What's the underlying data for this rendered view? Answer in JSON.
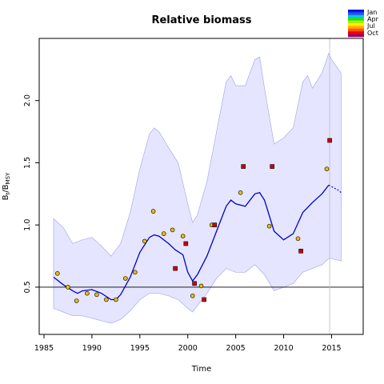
{
  "chart_data": {
    "type": "line",
    "title": "Relative biomass",
    "xlabel": "Time",
    "ylabel": "B",
    "ylabel_sub": "t",
    "ylabel_mid": "/B",
    "ylabel_sub2": "MSY",
    "xlim": [
      1984.5,
      2018.3
    ],
    "ylim": [
      0.12,
      2.5
    ],
    "x_ticks": [
      1985,
      1990,
      1995,
      2000,
      2005,
      2010,
      2015
    ],
    "y_ticks": [
      0.5,
      1.0,
      1.5,
      2.0
    ],
    "y_tick_labels": [
      "0.5",
      "1.0",
      "1.5",
      "2.0"
    ],
    "reference_line_y": 0.5,
    "reference_line_x": 2014.8,
    "colors": {
      "band_fill": "#e5e5ff",
      "band_edge": "#aaaaee",
      "line": "#0000cc",
      "ref_hline": "#000000",
      "ref_vline": "#bbbbbb",
      "point_yellow": "#e8c000",
      "point_red": "#cc0000"
    },
    "legend": {
      "placement": "top-right",
      "entries": [
        {
          "label": "Jan",
          "color": "#0000ee"
        },
        {
          "label": "Apr",
          "color": "#00dd00"
        },
        {
          "label": "Jul",
          "color": "#ff7700"
        },
        {
          "label": "Oct",
          "color": "#990066"
        }
      ],
      "gradient": [
        "#1111dd",
        "#2255ee",
        "#00ccdd",
        "#22dd22",
        "#aaee00",
        "#ffee00",
        "#ffaa00",
        "#ff5500",
        "#ee0000",
        "#990066"
      ]
    },
    "series": [
      {
        "kind": "median",
        "x": [
          1986,
          1987,
          1988,
          1988.5,
          1989,
          1990,
          1991,
          1992,
          1992.5,
          1993,
          1994,
          1995,
          1996,
          1996.5,
          1997,
          1998,
          1998.7,
          1999.5,
          2000,
          2000.5,
          2001,
          2002,
          2003,
          2004,
          2004.5,
          2005,
          2006,
          2007,
          2007.5,
          2008,
          2009,
          2010,
          2011,
          2012,
          2013,
          2014,
          2014.7
        ],
        "y": [
          0.58,
          0.52,
          0.47,
          0.45,
          0.47,
          0.48,
          0.45,
          0.4,
          0.4,
          0.44,
          0.58,
          0.78,
          0.9,
          0.92,
          0.91,
          0.85,
          0.8,
          0.76,
          0.62,
          0.55,
          0.6,
          0.75,
          0.95,
          1.15,
          1.2,
          1.17,
          1.15,
          1.25,
          1.26,
          1.2,
          0.95,
          0.88,
          0.93,
          1.1,
          1.18,
          1.25,
          1.32
        ]
      },
      {
        "kind": "median-projection",
        "x": [
          2014.7,
          2015.2,
          2015.7,
          2016
        ],
        "y": [
          1.32,
          1.3,
          1.28,
          1.26
        ]
      },
      {
        "kind": "upper",
        "x": [
          1986,
          1987,
          1988,
          1989,
          1990,
          1991,
          1992,
          1993,
          1994,
          1995,
          1996,
          1996.5,
          1997,
          1998,
          1999,
          2000,
          2000.5,
          2001,
          2002,
          2003,
          2004,
          2004.5,
          2005,
          2006,
          2007,
          2007.5,
          2008,
          2009,
          2010,
          2011,
          2012,
          2012.5,
          2013,
          2014,
          2014.7,
          2015,
          2016
        ],
        "y": [
          1.05,
          0.98,
          0.85,
          0.88,
          0.9,
          0.83,
          0.75,
          0.85,
          1.1,
          1.45,
          1.73,
          1.78,
          1.75,
          1.62,
          1.5,
          1.17,
          1.02,
          1.08,
          1.35,
          1.75,
          2.15,
          2.2,
          2.12,
          2.12,
          2.33,
          2.35,
          2.1,
          1.65,
          1.7,
          1.78,
          2.15,
          2.2,
          2.1,
          2.22,
          2.38,
          2.33,
          2.22
        ]
      },
      {
        "kind": "lower",
        "x": [
          1986,
          1987,
          1988,
          1989,
          1990,
          1991,
          1992,
          1993,
          1994,
          1995,
          1996,
          1997,
          1998,
          1999,
          2000,
          2000.5,
          2001,
          2002,
          2003,
          2004,
          2005,
          2006,
          2007,
          2008,
          2009,
          2010,
          2011,
          2012,
          2013,
          2014,
          2014.7,
          2015,
          2016
        ],
        "y": [
          0.33,
          0.3,
          0.27,
          0.27,
          0.25,
          0.23,
          0.21,
          0.24,
          0.31,
          0.4,
          0.45,
          0.45,
          0.43,
          0.4,
          0.33,
          0.3,
          0.35,
          0.45,
          0.57,
          0.65,
          0.62,
          0.62,
          0.68,
          0.6,
          0.47,
          0.5,
          0.53,
          0.62,
          0.65,
          0.68,
          0.73,
          0.73,
          0.71
        ]
      }
    ],
    "points": [
      {
        "x": 1986.4,
        "y": 0.61,
        "month": "Jul"
      },
      {
        "x": 1987.5,
        "y": 0.5,
        "month": "Jul"
      },
      {
        "x": 1988.4,
        "y": 0.39,
        "month": "Jul"
      },
      {
        "x": 1989.5,
        "y": 0.45,
        "month": "Jul"
      },
      {
        "x": 1990.5,
        "y": 0.44,
        "month": "Jul"
      },
      {
        "x": 1991.5,
        "y": 0.4,
        "month": "Jul"
      },
      {
        "x": 1992.5,
        "y": 0.4,
        "month": "Jul"
      },
      {
        "x": 1993.5,
        "y": 0.57,
        "month": "Jul"
      },
      {
        "x": 1994.5,
        "y": 0.62,
        "month": "Jul"
      },
      {
        "x": 1995.5,
        "y": 0.87,
        "month": "Jul"
      },
      {
        "x": 1996.4,
        "y": 1.11,
        "month": "Jul"
      },
      {
        "x": 1997.5,
        "y": 0.93,
        "month": "Jul"
      },
      {
        "x": 1998.4,
        "y": 0.96,
        "month": "Jul"
      },
      {
        "x": 1998.7,
        "y": 0.65,
        "month": "Oct"
      },
      {
        "x": 1999.5,
        "y": 0.91,
        "month": "Jul"
      },
      {
        "x": 1999.8,
        "y": 0.85,
        "month": "Oct"
      },
      {
        "x": 2000.5,
        "y": 0.43,
        "month": "Jul"
      },
      {
        "x": 2000.7,
        "y": 0.53,
        "month": "Oct"
      },
      {
        "x": 2001.4,
        "y": 0.51,
        "month": "Jul"
      },
      {
        "x": 2001.7,
        "y": 0.4,
        "month": "Oct"
      },
      {
        "x": 2002.5,
        "y": 1.0,
        "month": "Jul"
      },
      {
        "x": 2002.8,
        "y": 1.0,
        "month": "Oct"
      },
      {
        "x": 2005.5,
        "y": 1.26,
        "month": "Jul"
      },
      {
        "x": 2005.8,
        "y": 1.47,
        "month": "Oct"
      },
      {
        "x": 2008.5,
        "y": 0.99,
        "month": "Jul"
      },
      {
        "x": 2008.8,
        "y": 1.47,
        "month": "Oct"
      },
      {
        "x": 2011.5,
        "y": 0.89,
        "month": "Jul"
      },
      {
        "x": 2011.8,
        "y": 0.79,
        "month": "Oct"
      },
      {
        "x": 2014.5,
        "y": 1.45,
        "month": "Jul"
      },
      {
        "x": 2014.8,
        "y": 1.68,
        "month": "Oct"
      }
    ]
  }
}
